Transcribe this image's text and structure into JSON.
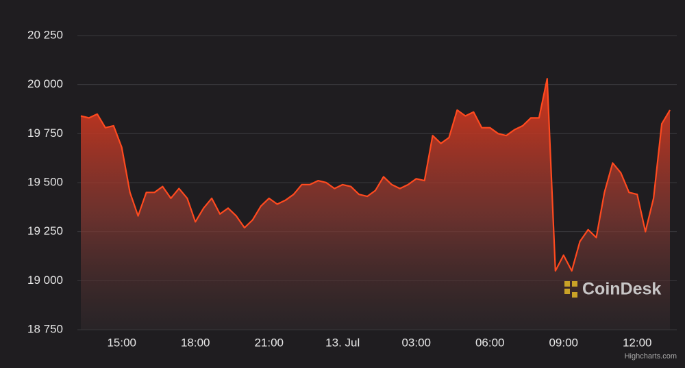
{
  "chart_data": {
    "type": "area",
    "categories": [
      null,
      null,
      null,
      null,
      null,
      "15:00",
      null,
      null,
      null,
      null,
      null,
      null,
      null,
      null,
      "18:00",
      null,
      null,
      null,
      null,
      null,
      null,
      null,
      null,
      "21:00",
      null,
      null,
      null,
      null,
      null,
      null,
      null,
      null,
      "13. Jul",
      null,
      null,
      null,
      null,
      null,
      null,
      null,
      null,
      "03:00",
      null,
      null,
      null,
      null,
      null,
      null,
      null,
      null,
      "06:00",
      null,
      null,
      null,
      null,
      null,
      null,
      null,
      null,
      "09:00",
      null,
      null,
      null,
      null,
      null,
      null,
      null,
      null,
      "12:00",
      null,
      null,
      null,
      null
    ],
    "values": [
      19840,
      19830,
      19850,
      19780,
      19790,
      19680,
      19450,
      19330,
      19450,
      19450,
      19480,
      19420,
      19470,
      19420,
      19300,
      19370,
      19420,
      19340,
      19370,
      19330,
      19270,
      19310,
      19380,
      19420,
      19390,
      19410,
      19440,
      19490,
      19490,
      19510,
      19500,
      19470,
      19490,
      19480,
      19440,
      19430,
      19460,
      19530,
      19490,
      19470,
      19490,
      19520,
      19510,
      19740,
      19700,
      19730,
      19870,
      19840,
      19860,
      19780,
      19780,
      19750,
      19740,
      19770,
      19790,
      19830,
      19830,
      20030,
      19050,
      19130,
      19050,
      19200,
      19260,
      19220,
      19450,
      19600,
      19550,
      19450,
      19440,
      19250,
      19420,
      19800,
      19870
    ],
    "color": "#ff4a1f",
    "ylim": [
      18750,
      20250
    ],
    "yticks": [
      {
        "value": 18750,
        "label": "18 750"
      },
      {
        "value": 19000,
        "label": "19 000"
      },
      {
        "value": 19250,
        "label": "19 250"
      },
      {
        "value": 19500,
        "label": "19 500"
      },
      {
        "value": 19750,
        "label": "19 750"
      },
      {
        "value": 20000,
        "label": "20 000"
      },
      {
        "value": 20250,
        "label": "20 250"
      }
    ],
    "grid": true,
    "watermark": "CoinDesk",
    "credit": "Highcharts.com"
  }
}
